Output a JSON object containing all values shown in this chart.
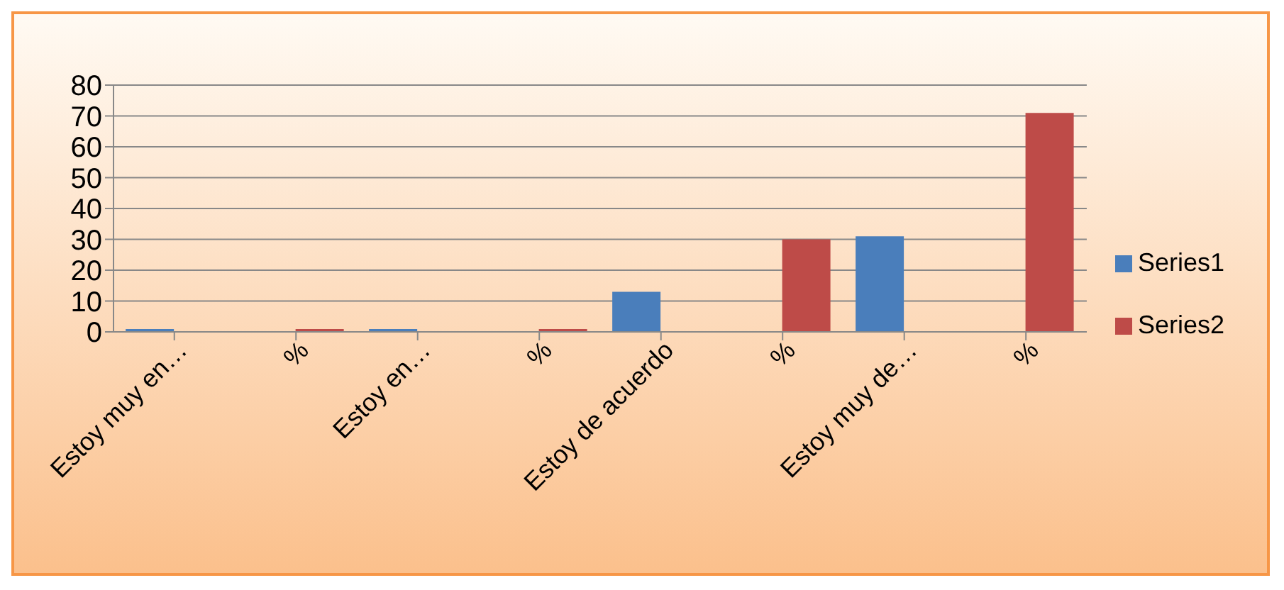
{
  "chart_data": {
    "type": "bar",
    "categories": [
      "Estoy muy en…",
      "%",
      "Estoy en…",
      "%",
      "Estoy de acuerdo",
      "%",
      "Estoy muy de…",
      "%"
    ],
    "series": [
      {
        "name": "Series1",
        "color": "#4a7ebb",
        "values": [
          0,
          null,
          0,
          null,
          13,
          null,
          31,
          null
        ]
      },
      {
        "name": "Series2",
        "color": "#be4b48",
        "values": [
          null,
          0,
          null,
          0,
          null,
          30,
          null,
          71
        ]
      }
    ],
    "ylim": [
      0,
      80
    ],
    "yticks": [
      0,
      10,
      20,
      30,
      40,
      50,
      60,
      70,
      80
    ],
    "grid": "y",
    "legend": "right"
  }
}
